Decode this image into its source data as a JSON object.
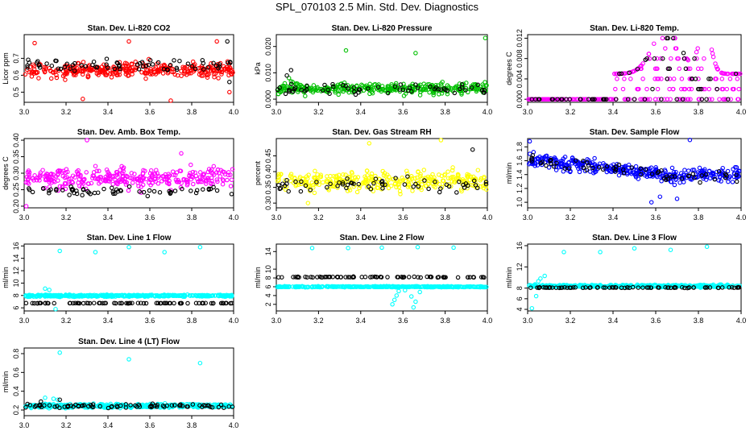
{
  "page_title": "SPL_070103  2.5 Min. Std. Dev. Diagnostics",
  "chart_data": [
    {
      "type": "scatter",
      "title": "Stan. Dev. Li-820 CO2",
      "ylabel": "Licor ppm",
      "xlim": [
        3.0,
        4.0
      ],
      "ylim": [
        0.44,
        0.84
      ],
      "xticks": [
        "3.0",
        "3.2",
        "3.4",
        "3.6",
        "3.8",
        "4.0"
      ],
      "yticks": [
        {
          "v": 0.5,
          "label": "0.5"
        },
        {
          "v": 0.6,
          "label": "0.6"
        },
        {
          "v": 0.7,
          "label": "0.7"
        }
      ],
      "series": [
        {
          "color": "#ff0000",
          "gen": {
            "kind": "band",
            "n": 340,
            "center": 0.63,
            "spread": 0.075,
            "seed": 11
          },
          "points": [
            [
              3.28,
              0.46
            ],
            [
              3.7,
              0.45
            ],
            [
              3.98,
              0.5
            ],
            [
              3.05,
              0.79
            ],
            [
              3.5,
              0.8
            ],
            [
              3.92,
              0.8
            ]
          ]
        },
        {
          "color": "#000000",
          "gen": {
            "kind": "band",
            "n": 70,
            "center": 0.66,
            "spread": 0.06,
            "seed": 12
          },
          "points": [
            [
              3.97,
              0.8
            ],
            [
              3.98,
              0.56
            ]
          ]
        }
      ]
    },
    {
      "type": "scatter",
      "title": "Stan. Dev. Li-820 Pressure",
      "ylabel": "kPa",
      "xlim": [
        3.0,
        4.0
      ],
      "ylim": [
        -0.0012,
        0.0245
      ],
      "xticks": [
        "3.0",
        "3.2",
        "3.4",
        "3.6",
        "3.8",
        "4.0"
      ],
      "yticks": [
        {
          "v": 0.0,
          "label": "0.000"
        },
        {
          "v": 0.01,
          "label": "0.010"
        },
        {
          "v": 0.02,
          "label": "0.020"
        }
      ],
      "series": [
        {
          "color": "#00c000",
          "gen": {
            "kind": "band",
            "n": 340,
            "center": 0.004,
            "spread": 0.0035,
            "seed": 21
          },
          "points": [
            [
              3.33,
              0.0185
            ],
            [
              3.66,
              0.0175
            ],
            [
              3.99,
              0.0232
            ],
            [
              3.01,
              0.002
            ],
            [
              3.02,
              0.003
            ],
            [
              3.03,
              0.005
            ],
            [
              3.04,
              0.006
            ],
            [
              3.06,
              0.008
            ]
          ]
        },
        {
          "color": "#000000",
          "gen": {
            "kind": "band",
            "n": 60,
            "center": 0.004,
            "spread": 0.003,
            "seed": 22
          },
          "points": [
            [
              3.07,
              0.011
            ],
            [
              3.05,
              0.009
            ]
          ]
        }
      ]
    },
    {
      "type": "scatter",
      "title": "Stan. Dev. Li-820 Temp.",
      "ylabel": "degrees C",
      "xlim": [
        3.0,
        4.0
      ],
      "ylim": [
        -0.0006,
        0.0127
      ],
      "xticks": [
        "3.0",
        "3.2",
        "3.4",
        "3.6",
        "3.8",
        "4.0"
      ],
      "yticks": [
        {
          "v": 0.0,
          "label": "0.000"
        },
        {
          "v": 0.004,
          "label": "0.004"
        },
        {
          "v": 0.008,
          "label": "0.008"
        },
        {
          "v": 0.012,
          "label": "0.012"
        }
      ],
      "series": [
        {
          "color": "#ff00ff",
          "gen": {
            "kind": "temp",
            "n": 300,
            "seed": 31
          },
          "points": []
        },
        {
          "color": "#000000",
          "gen": {
            "kind": "temp",
            "n": 60,
            "seed": 32
          },
          "points": []
        }
      ]
    },
    {
      "type": "scatter",
      "title": "Stan. Dev. Amb. Box Temp.",
      "ylabel": "degrees C",
      "xlim": [
        3.0,
        4.0
      ],
      "ylim": [
        0.195,
        0.405
      ],
      "xticks": [
        "3.0",
        "3.2",
        "3.4",
        "3.6",
        "3.8",
        "4.0"
      ],
      "yticks": [
        {
          "v": 0.2,
          "label": "0.20"
        },
        {
          "v": 0.25,
          "label": "0.25"
        },
        {
          "v": 0.3,
          "label": "0.30"
        },
        {
          "v": 0.35,
          "label": "0.35"
        },
        {
          "v": 0.4,
          "label": "0.40"
        }
      ],
      "series": [
        {
          "color": "#ff00ff",
          "gen": {
            "kind": "band",
            "n": 320,
            "center": 0.285,
            "spread": 0.05,
            "seed": 41
          },
          "points": [
            [
              3.3,
              0.4
            ],
            [
              3.01,
              0.2
            ],
            [
              3.75,
              0.36
            ]
          ]
        },
        {
          "color": "#000000",
          "gen": {
            "kind": "band",
            "n": 60,
            "center": 0.245,
            "spread": 0.02,
            "seed": 42
          },
          "points": []
        }
      ]
    },
    {
      "type": "scatter",
      "title": "Stan. Dev. Gas Stream RH",
      "ylabel": "percent",
      "xlim": [
        3.0,
        4.0
      ],
      "ylim": [
        0.285,
        0.505
      ],
      "xticks": [
        "3.0",
        "3.2",
        "3.4",
        "3.6",
        "3.8",
        "4.0"
      ],
      "yticks": [
        {
          "v": 0.3,
          "label": "0.30"
        },
        {
          "v": 0.35,
          "label": "0.35"
        },
        {
          "v": 0.4,
          "label": "0.40"
        },
        {
          "v": 0.45,
          "label": "0.45"
        }
      ],
      "series": [
        {
          "color": "#ffff00",
          "gen": {
            "kind": "band",
            "n": 320,
            "center": 0.37,
            "spread": 0.055,
            "seed": 51
          },
          "points": [
            [
              3.78,
              0.5
            ],
            [
              3.44,
              0.49
            ],
            [
              3.15,
              0.3
            ]
          ]
        },
        {
          "color": "#000000",
          "gen": {
            "kind": "band",
            "n": 60,
            "center": 0.36,
            "spread": 0.035,
            "seed": 52
          },
          "points": [
            [
              3.93,
              0.47
            ]
          ]
        }
      ]
    },
    {
      "type": "scatter",
      "title": "Stan. Dev. Sample Flow",
      "ylabel": "ml/min",
      "xlim": [
        3.0,
        4.0
      ],
      "ylim": [
        0.92,
        1.92
      ],
      "xticks": [
        "3.0",
        "3.2",
        "3.4",
        "3.6",
        "3.8",
        "4.0"
      ],
      "yticks": [
        {
          "v": 1.0,
          "label": "1.0"
        },
        {
          "v": 1.2,
          "label": "1.2"
        },
        {
          "v": 1.4,
          "label": "1.4"
        },
        {
          "v": 1.6,
          "label": "1.6"
        },
        {
          "v": 1.8,
          "label": "1.8"
        }
      ],
      "series": [
        {
          "color": "#0000ff",
          "gen": {
            "kind": "flow",
            "n": 380,
            "seed": 61
          },
          "points": [
            [
              3.76,
              1.9
            ],
            [
              3.01,
              1.88
            ],
            [
              3.58,
              1.0
            ],
            [
              3.62,
              1.08
            ],
            [
              3.7,
              1.05
            ]
          ]
        },
        {
          "color": "#000000",
          "gen": {
            "kind": "flow",
            "n": 60,
            "seed": 62
          },
          "points": []
        }
      ]
    },
    {
      "type": "scatter",
      "title": "Stan. Dev. Line 1 Flow",
      "ylabel": "ml/min",
      "xlim": [
        3.0,
        4.0
      ],
      "ylim": [
        5.5,
        16.3
      ],
      "xticks": [
        "3.0",
        "3.2",
        "3.4",
        "3.6",
        "3.8",
        "4.0"
      ],
      "yticks": [
        {
          "v": 6,
          "label": "6"
        },
        {
          "v": 8,
          "label": "8"
        },
        {
          "v": 10,
          "label": "10"
        },
        {
          "v": 12,
          "label": "12"
        },
        {
          "v": 14,
          "label": "14"
        },
        {
          "v": 16,
          "label": "16"
        }
      ],
      "series": [
        {
          "color": "#00ffff",
          "gen": {
            "kind": "band",
            "n": 420,
            "center": 7.95,
            "spread": 0.25,
            "seed": 71
          },
          "points": [
            [
              3.17,
              15.2
            ],
            [
              3.34,
              15.0
            ],
            [
              3.5,
              15.8
            ],
            [
              3.67,
              15.0
            ],
            [
              3.84,
              15.8
            ],
            [
              4.0,
              15.9
            ],
            [
              3.1,
              9.1
            ],
            [
              3.12,
              8.9
            ],
            [
              3.15,
              5.8
            ]
          ]
        },
        {
          "color": "#000000",
          "gen": {
            "kind": "band",
            "n": 80,
            "center": 6.75,
            "spread": 0.05,
            "seed": 72
          },
          "points": []
        }
      ]
    },
    {
      "type": "scatter",
      "title": "Stan. Dev. Line 2 Flow",
      "ylabel": "ml/min",
      "xlim": [
        3.0,
        4.0
      ],
      "ylim": [
        0.5,
        15.7
      ],
      "xticks": [
        "3.0",
        "3.2",
        "3.4",
        "3.6",
        "3.8",
        "4.0"
      ],
      "yticks": [
        {
          "v": 2,
          "label": "2"
        },
        {
          "v": 4,
          "label": "4"
        },
        {
          "v": 6,
          "label": "6"
        },
        {
          "v": 8,
          "label": "8"
        },
        {
          "v": 10,
          "label": "10"
        },
        {
          "v": 14,
          "label": "14"
        }
      ],
      "series": [
        {
          "color": "#00ffff",
          "gen": {
            "kind": "band",
            "n": 420,
            "center": 6.0,
            "spread": 0.2,
            "seed": 81
          },
          "points": [
            [
              3.17,
              14.8
            ],
            [
              3.34,
              14.8
            ],
            [
              3.5,
              14.9
            ],
            [
              3.67,
              15.0
            ],
            [
              3.84,
              14.9
            ],
            [
              4.0,
              15.2
            ],
            [
              3.55,
              2.0
            ],
            [
              3.56,
              3.0
            ],
            [
              3.57,
              4.0
            ],
            [
              3.58,
              5.0
            ],
            [
              3.65,
              1.3
            ],
            [
              3.66,
              2.6
            ],
            [
              3.64,
              3.8
            ],
            [
              3.68,
              4.8
            ],
            [
              3.61,
              5.2
            ]
          ]
        },
        {
          "color": "#000000",
          "gen": {
            "kind": "band",
            "n": 80,
            "center": 8.2,
            "spread": 0.15,
            "seed": 82
          },
          "points": []
        }
      ]
    },
    {
      "type": "scatter",
      "title": "Stan. Dev. Line 3 Flow",
      "ylabel": "ml/min",
      "xlim": [
        3.0,
        4.0
      ],
      "ylim": [
        3.7,
        16.3
      ],
      "xticks": [
        "3.0",
        "3.2",
        "3.4",
        "3.6",
        "3.8",
        "4.0"
      ],
      "yticks": [
        {
          "v": 4,
          "label": "4"
        },
        {
          "v": 6,
          "label": "6"
        },
        {
          "v": 8,
          "label": "8"
        },
        {
          "v": 12,
          "label": "12"
        },
        {
          "v": 16,
          "label": "16"
        }
      ],
      "series": [
        {
          "color": "#00ffff",
          "gen": {
            "kind": "band",
            "n": 400,
            "center": 8.4,
            "spread": 0.4,
            "seed": 91
          },
          "points": [
            [
              3.17,
              14.8
            ],
            [
              3.34,
              14.8
            ],
            [
              3.5,
              15.5
            ],
            [
              3.67,
              15.2
            ],
            [
              3.84,
              15.8
            ],
            [
              4.0,
              15.6
            ],
            [
              3.02,
              4.2
            ],
            [
              3.04,
              6.5
            ],
            [
              3.06,
              9.8
            ],
            [
              3.08,
              10.3
            ],
            [
              3.05,
              9.3
            ]
          ]
        },
        {
          "color": "#000000",
          "gen": {
            "kind": "band",
            "n": 80,
            "center": 8.1,
            "spread": 0.12,
            "seed": 92
          },
          "points": []
        }
      ]
    },
    {
      "type": "scatter",
      "title": "Stan. Dev. Line 4 (LT) Flow",
      "ylabel": "ml/min",
      "xlim": [
        3.0,
        4.0
      ],
      "ylim": [
        0.14,
        0.86
      ],
      "xticks": [
        "3.0",
        "3.2",
        "3.4",
        "3.6",
        "3.8",
        "4.0"
      ],
      "yticks": [
        {
          "v": 0.2,
          "label": "0.2"
        },
        {
          "v": 0.4,
          "label": "0.4"
        },
        {
          "v": 0.6,
          "label": "0.6"
        },
        {
          "v": 0.8,
          "label": "0.8"
        }
      ],
      "series": [
        {
          "color": "#00ffff",
          "gen": {
            "kind": "band",
            "n": 420,
            "center": 0.245,
            "spread": 0.035,
            "seed": 101
          },
          "points": [
            [
              3.17,
              0.81
            ],
            [
              3.5,
              0.74
            ],
            [
              3.84,
              0.7
            ],
            [
              3.1,
              0.33
            ],
            [
              3.14,
              0.32
            ],
            [
              3.16,
              0.31
            ]
          ]
        },
        {
          "color": "#000000",
          "gen": {
            "kind": "band",
            "n": 80,
            "center": 0.245,
            "spread": 0.03,
            "seed": 102
          },
          "points": [
            [
              3.17,
              0.31
            ],
            [
              3.08,
              0.29
            ]
          ]
        }
      ]
    }
  ]
}
